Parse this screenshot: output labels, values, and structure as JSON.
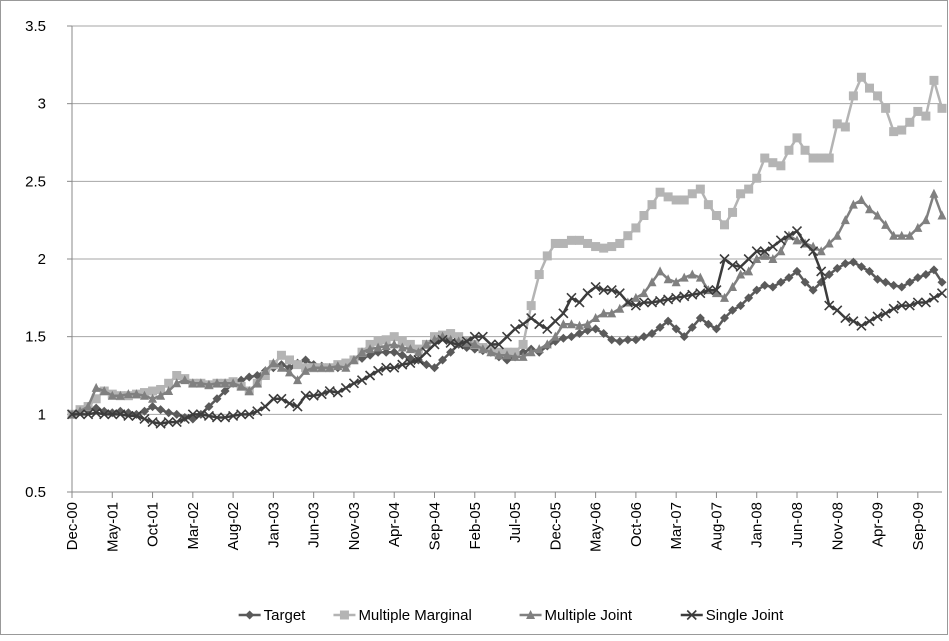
{
  "chart_data": {
    "type": "line",
    "categories": [
      "Dec-00",
      null,
      null,
      null,
      null,
      "May-01",
      null,
      null,
      null,
      null,
      "Oct-01",
      null,
      null,
      null,
      null,
      "Mar-02",
      null,
      null,
      null,
      null,
      "Aug-02",
      null,
      null,
      null,
      null,
      "Jan-03",
      null,
      null,
      null,
      null,
      "Jun-03",
      null,
      null,
      null,
      null,
      "Nov-03",
      null,
      null,
      null,
      null,
      "Apr-04",
      null,
      null,
      null,
      null,
      "Sep-04",
      null,
      null,
      null,
      null,
      "Feb-05",
      null,
      null,
      null,
      null,
      "Jul-05",
      null,
      null,
      null,
      null,
      "Dec-05",
      null,
      null,
      null,
      null,
      "May-06",
      null,
      null,
      null,
      null,
      "Oct-06",
      null,
      null,
      null,
      null,
      "Mar-07",
      null,
      null,
      null,
      null,
      "Aug-07",
      null,
      null,
      null,
      null,
      "Jan-08",
      null,
      null,
      null,
      null,
      "Jun-08",
      null,
      null,
      null,
      null,
      "Nov-08",
      null,
      null,
      null,
      null,
      "Apr-09",
      null,
      null,
      null,
      null,
      "Sep-09",
      null,
      null,
      null
    ],
    "series": [
      {
        "name": "Target",
        "color": "#5a5a5a",
        "marker": "diamond",
        "values": [
          1.0,
          1.02,
          1.03,
          1.04,
          1.02,
          1.01,
          1.02,
          1.01,
          1.0,
          1.02,
          1.05,
          1.03,
          1.01,
          1.0,
          0.98,
          0.97,
          1.0,
          1.05,
          1.1,
          1.15,
          1.2,
          1.22,
          1.24,
          1.25,
          1.28,
          1.3,
          1.32,
          1.3,
          1.33,
          1.35,
          1.32,
          1.31,
          1.3,
          1.3,
          1.33,
          1.35,
          1.36,
          1.38,
          1.4,
          1.4,
          1.4,
          1.38,
          1.36,
          1.35,
          1.32,
          1.3,
          1.35,
          1.4,
          1.45,
          1.43,
          1.42,
          1.41,
          1.4,
          1.37,
          1.35,
          1.37,
          1.4,
          1.42,
          1.4,
          1.44,
          1.47,
          1.49,
          1.5,
          1.52,
          1.54,
          1.55,
          1.52,
          1.48,
          1.47,
          1.48,
          1.48,
          1.5,
          1.52,
          1.56,
          1.6,
          1.55,
          1.5,
          1.56,
          1.62,
          1.58,
          1.55,
          1.62,
          1.67,
          1.7,
          1.75,
          1.8,
          1.83,
          1.82,
          1.85,
          1.88,
          1.92,
          1.85,
          1.8,
          1.85,
          1.9,
          1.94,
          1.97,
          1.98,
          1.95,
          1.92,
          1.87,
          1.85,
          1.83,
          1.82,
          1.85,
          1.88,
          1.9,
          1.93,
          1.85
        ]
      },
      {
        "name": "Multiple Marginal",
        "color": "#b4b4b4",
        "marker": "square",
        "values": [
          1.0,
          1.03,
          1.05,
          1.1,
          1.15,
          1.13,
          1.12,
          1.12,
          1.13,
          1.14,
          1.15,
          1.16,
          1.2,
          1.25,
          1.23,
          1.2,
          1.2,
          1.19,
          1.2,
          1.2,
          1.21,
          1.18,
          1.15,
          1.2,
          1.25,
          1.32,
          1.38,
          1.35,
          1.32,
          1.3,
          1.3,
          1.3,
          1.3,
          1.32,
          1.33,
          1.35,
          1.4,
          1.45,
          1.47,
          1.48,
          1.5,
          1.47,
          1.45,
          1.42,
          1.45,
          1.5,
          1.51,
          1.52,
          1.5,
          1.47,
          1.45,
          1.43,
          1.42,
          1.4,
          1.4,
          1.4,
          1.45,
          1.7,
          1.9,
          2.02,
          2.1,
          2.1,
          2.12,
          2.12,
          2.1,
          2.08,
          2.07,
          2.08,
          2.1,
          2.15,
          2.2,
          2.28,
          2.35,
          2.43,
          2.4,
          2.38,
          2.38,
          2.42,
          2.45,
          2.35,
          2.28,
          2.22,
          2.3,
          2.42,
          2.45,
          2.52,
          2.65,
          2.62,
          2.6,
          2.7,
          2.78,
          2.7,
          2.65,
          2.65,
          2.65,
          2.87,
          2.85,
          3.05,
          3.17,
          3.1,
          3.05,
          2.97,
          2.82,
          2.83,
          2.88,
          2.95,
          2.92,
          3.15,
          2.97
        ]
      },
      {
        "name": "Multiple Joint",
        "color": "#808080",
        "marker": "triangle",
        "values": [
          1.0,
          1.02,
          1.05,
          1.17,
          1.15,
          1.12,
          1.12,
          1.13,
          1.13,
          1.12,
          1.1,
          1.12,
          1.15,
          1.2,
          1.22,
          1.2,
          1.2,
          1.19,
          1.2,
          1.2,
          1.2,
          1.18,
          1.15,
          1.2,
          1.28,
          1.33,
          1.3,
          1.27,
          1.22,
          1.28,
          1.3,
          1.3,
          1.3,
          1.31,
          1.3,
          1.35,
          1.4,
          1.42,
          1.43,
          1.44,
          1.45,
          1.43,
          1.42,
          1.4,
          1.45,
          1.48,
          1.5,
          1.48,
          1.47,
          1.46,
          1.45,
          1.42,
          1.4,
          1.38,
          1.38,
          1.37,
          1.37,
          1.4,
          1.42,
          1.45,
          1.5,
          1.58,
          1.58,
          1.57,
          1.58,
          1.62,
          1.65,
          1.65,
          1.68,
          1.72,
          1.75,
          1.78,
          1.85,
          1.92,
          1.87,
          1.85,
          1.88,
          1.9,
          1.88,
          1.8,
          1.78,
          1.75,
          1.82,
          1.9,
          1.92,
          2.0,
          2.02,
          2.0,
          2.05,
          2.15,
          2.12,
          2.1,
          2.08,
          2.05,
          2.1,
          2.15,
          2.25,
          2.35,
          2.38,
          2.32,
          2.28,
          2.22,
          2.15,
          2.15,
          2.15,
          2.2,
          2.25,
          2.42,
          2.28
        ]
      },
      {
        "name": "Single Joint",
        "color": "#3c3c3c",
        "marker": "x",
        "values": [
          1.0,
          1.0,
          1.0,
          1.01,
          1.0,
          1.0,
          1.0,
          0.99,
          0.99,
          0.97,
          0.95,
          0.94,
          0.95,
          0.95,
          0.97,
          1.0,
          1.0,
          0.99,
          0.98,
          0.98,
          0.99,
          1.0,
          1.0,
          1.02,
          1.05,
          1.1,
          1.1,
          1.07,
          1.05,
          1.12,
          1.12,
          1.13,
          1.15,
          1.14,
          1.17,
          1.2,
          1.22,
          1.25,
          1.28,
          1.3,
          1.3,
          1.32,
          1.33,
          1.35,
          1.4,
          1.45,
          1.48,
          1.46,
          1.45,
          1.47,
          1.5,
          1.5,
          1.45,
          1.45,
          1.5,
          1.55,
          1.58,
          1.62,
          1.58,
          1.55,
          1.6,
          1.65,
          1.75,
          1.72,
          1.78,
          1.82,
          1.8,
          1.8,
          1.78,
          1.72,
          1.7,
          1.72,
          1.72,
          1.73,
          1.74,
          1.75,
          1.76,
          1.77,
          1.78,
          1.8,
          1.8,
          2.0,
          1.96,
          1.95,
          2.0,
          2.05,
          2.05,
          2.08,
          2.12,
          2.15,
          2.18,
          2.1,
          2.05,
          1.92,
          1.7,
          1.67,
          1.62,
          1.6,
          1.57,
          1.6,
          1.63,
          1.65,
          1.68,
          1.7,
          1.7,
          1.72,
          1.72,
          1.75,
          1.78
        ]
      }
    ],
    "ylim": [
      0.5,
      3.5
    ],
    "yticks": [
      0.5,
      1,
      1.5,
      2,
      2.5,
      3,
      3.5
    ],
    "grid": true,
    "legend": "bottom"
  }
}
